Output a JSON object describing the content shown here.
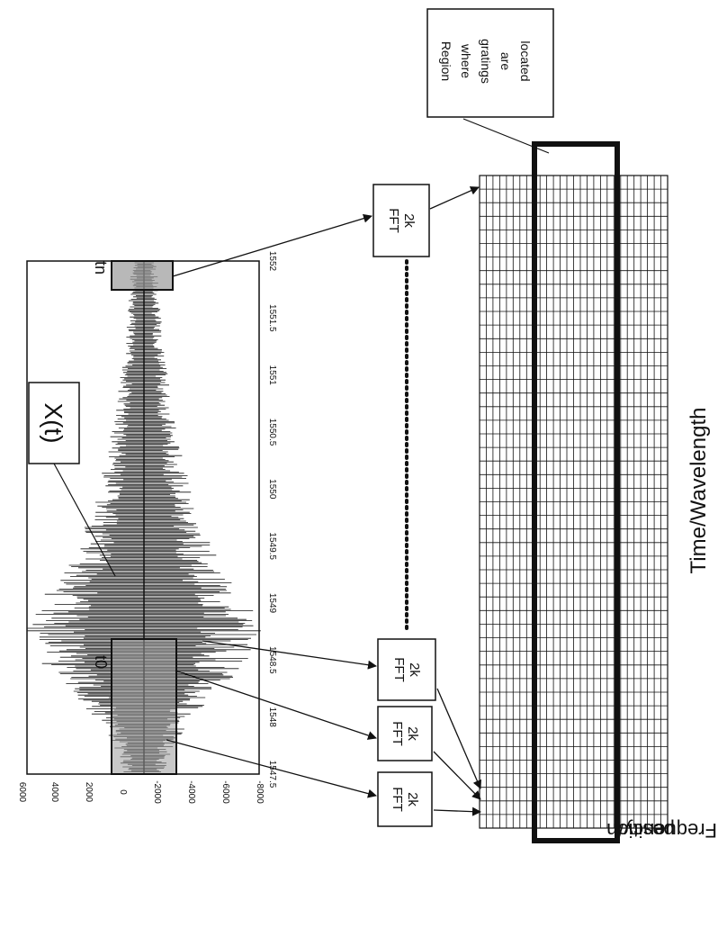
{
  "signal_label": "X(t)",
  "window_start_label": "t0",
  "window_end_label": "tn",
  "fft_box_text": {
    "line1": "2k",
    "line2": "FFT"
  },
  "region_callout": [
    "Region",
    "where",
    "gratings",
    "are",
    "located"
  ],
  "time_axis_label": "Time/Wavelength",
  "frequency_axis_label": [
    "Frequency/",
    "position"
  ],
  "signal_axis": {
    "amplitude_ticks": [
      "6000",
      "4000",
      "2000",
      "0",
      "-2000",
      "-4000",
      "-6000",
      "-8000"
    ],
    "wavelength_ticks": [
      "1547.5",
      "1548",
      "1548.5",
      "1549",
      "1549.5",
      "1550",
      "1550.5",
      "1551",
      "1551.5",
      "1552"
    ]
  },
  "colors": {
    "ink": "#111111",
    "window_fill": "#9a9a9a",
    "background": "#ffffff"
  }
}
